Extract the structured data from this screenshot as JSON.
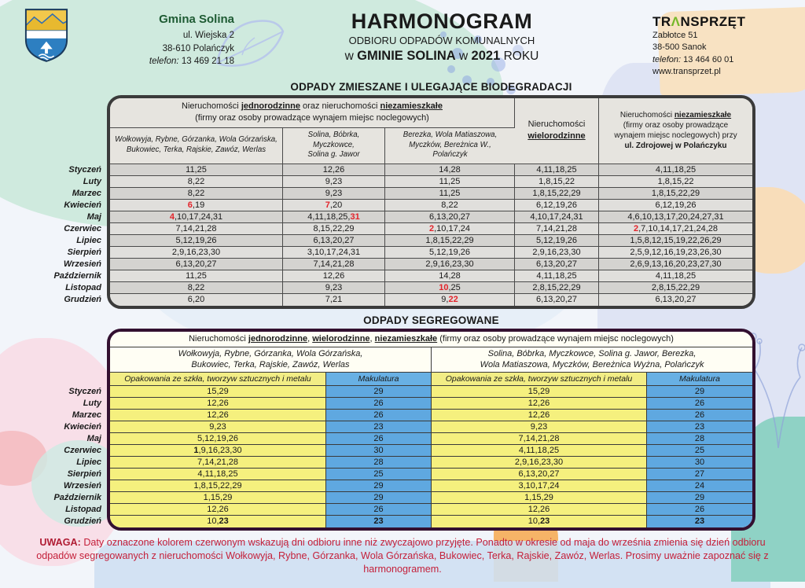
{
  "municipality": {
    "name": "Gmina Solina",
    "address1": "ul. Wiejska 2",
    "address2": "38-610 Polańczyk",
    "phone_label": "telefon:",
    "phone": "13 469 21 18"
  },
  "title": {
    "line1": "HARMONOGRAM",
    "line2": "ODBIORU ODPADÓW KOMUNALNYCH",
    "line3_w1": "w",
    "line3_bold1": "GMINIE SOLINA",
    "line3_w2": "w",
    "line3_bold2": "2021",
    "line3_rest": "ROKU"
  },
  "company": {
    "name_pre": "TR",
    "name_a": "Λ",
    "name_post": "NSPRZĘT",
    "address1": "Zabłotce 51",
    "address2": "38-500 Sanok",
    "phone_label": "telefon:",
    "phone": "13 464 60 01",
    "web": "www.transprzet.pl"
  },
  "months": [
    "Styczeń",
    "Luty",
    "Marzec",
    "Kwiecień",
    "Maj",
    "Czerwiec",
    "Lipiec",
    "Sierpień",
    "Wrzesień",
    "Październik",
    "Listopad",
    "Grudzień"
  ],
  "table1": {
    "section_title": "ODPADY ZMIESZANE I ULEGAJĄCE BIODEGRADACJI",
    "header_main": "Nieruchomości {u}jednorodzinne{/u} oraz nieruchomości {u}niezamieszkałe{/u}\n(firmy oraz osoby prowadzące wynajem miejsc noclegowych)",
    "columns": [
      "Wołkowyja, Rybne, Górzanka, Wola Górzańska,\nBukowiec, Terka, Rajskie, Zawóz, Werlas",
      "Solina, Bóbrka,\nMyczkowce,\nSolina g. Jawor",
      "Berezka, Wola Matiaszowa,\nMyczków, Bereżnica W.,\nPolańczyk"
    ],
    "col4": "Nieruchomości\n{u}wielorodzinne{/u}",
    "col5": "Nieruchomości {u}niezamieszkałe{/u}\n(firmy oraz osoby prowadzące\nwynajem miejsc noclegowych) przy\n{b}ul. Zdrojowej w Polańczyku{/b}",
    "rows": [
      [
        "11,25",
        "12,26",
        "14,28",
        "4,11,18,25",
        "4,11,18,25"
      ],
      [
        "8,22",
        "9,23",
        "11,25",
        "1,8,15,22",
        "1,8,15,22"
      ],
      [
        "8,22",
        "9,23",
        "11,25",
        "1,8,15,22,29",
        "1,8,15,22,29"
      ],
      [
        "{r}6{/r},19",
        "{r}7{/r},20",
        "8,22",
        "6,12,19,26",
        "6,12,19,26"
      ],
      [
        "{r}4{/r},10,17,24,31",
        "4,11,18,25,{r}31{/r}",
        "6,13,20,27",
        "4,10,17,24,31",
        "4,6,10,13,17,20,24,27,31"
      ],
      [
        "7,14,21,28",
        "8,15,22,29",
        "{r}2{/r},10,17,24",
        "7,14,21,28",
        "{r}2{/r},7,10,14,17,21,24,28"
      ],
      [
        "5,12,19,26",
        "6,13,20,27",
        "1,8,15,22,29",
        "5,12,19,26",
        "1,5,8,12,15,19,22,26,29"
      ],
      [
        "2,9,16,23,30",
        "3,10,17,24,31",
        "5,12,19,26",
        "2,9,16,23,30",
        "2,5,9,12,16,19,23,26,30"
      ],
      [
        "6,13,20,27",
        "7,14,21,28",
        "2,9,16,23,30",
        "6,13,20,27",
        "2,6,9,13,16,20,23,27,30"
      ],
      [
        "11,25",
        "12,26",
        "14,28",
        "4,11,18,25",
        "4,11,18,25"
      ],
      [
        "8,22",
        "9,23",
        "{r}10{/r},25",
        "2,8,15,22,29",
        "2,8,15,22,29"
      ],
      [
        "6,20",
        "7,21",
        "9,{r}22{/r}",
        "6,13,20,27",
        "6,13,20,27"
      ]
    ]
  },
  "table2": {
    "section_title": "ODPADY SEGREGOWANE",
    "header_main": "Nieruchomości {u}jednorodzinne{/u}, {u}wielorodzinne{/u}, {u}niezamieszkałe{/u} (firmy oraz osoby prowadzące wynajem miejsc noclegowych)",
    "group1_regions": "Wołkowyja, Rybne, Górzanka, Wola Górzańska,\nBukowiec, Terka, Rajskie, Zawóz, Werlas",
    "group2_regions": "Solina, Bóbrka, Myczkowce, Solina g. Jawor, Berezka,\nWola Matiaszowa, Myczków, Bereżnica Wyżna, Polańczyk",
    "col_glass": "Opakowania ze szkła, tworzyw sztucznych i metalu",
    "col_paper": "Makulatura",
    "rows": [
      [
        "15,29",
        "29",
        "15,29",
        "29"
      ],
      [
        "12,26",
        "26",
        "12,26",
        "26"
      ],
      [
        "12,26",
        "26",
        "12,26",
        "26"
      ],
      [
        "9,23",
        "23",
        "9,23",
        "23"
      ],
      [
        "5,12,19,26",
        "26",
        "7,14,21,28",
        "28"
      ],
      [
        "{b}1{/b},9,16,23,30",
        "30",
        "4,11,18,25",
        "25"
      ],
      [
        "7,14,21,28",
        "28",
        "2,9,16,23,30",
        "30"
      ],
      [
        "4,11,18,25",
        "25",
        "6,13,20,27",
        "27"
      ],
      [
        "1,8,15,22,29",
        "29",
        "3,10,17,24",
        "24"
      ],
      [
        "1,15,29",
        "29",
        "1,15,29",
        "29"
      ],
      [
        "12,26",
        "26",
        "12,26",
        "26"
      ],
      [
        "10,{b}23{/b}",
        "{b}23{/b}",
        "10,{b}23{/b}",
        "{b}23{/b}"
      ]
    ]
  },
  "footer": {
    "label": "UWAGA:",
    "text": "Daty oznaczone kolorem czerwonym wskazują dni odbioru inne niż zwyczajowo przyjęte. Ponadto w okresie od maja do września zmienia się dzień odbioru odpadów segregowanych z nieruchomości Wołkowyja, Rybne, Górzanka, Wola Górzańska, Bukowiec, Terka, Rajskie, Zawóz, Werlas. Prosimy uważnie zapoznać się z harmonogramem."
  },
  "colors": {
    "red_date": "#e3242b",
    "footer_red": "#c4203a",
    "yellow_cell": "#f5f07e",
    "blue_cell": "#5fa8e0",
    "table1_border": "#3b3b3b",
    "table2_border": "#331030",
    "logo_green": "#76b82a",
    "municipality_green": "#1e5b33"
  }
}
